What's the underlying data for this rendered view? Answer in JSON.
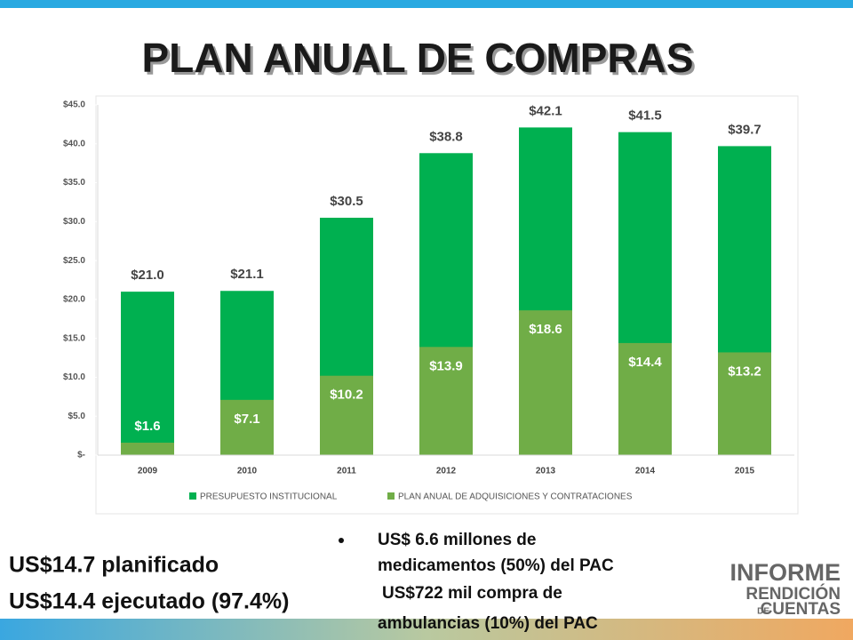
{
  "chart_data": {
    "type": "bar",
    "title": "PLAN ANUAL DE COMPRAS",
    "barmode": "overlay",
    "categories": [
      "2009",
      "2010",
      "2011",
      "2012",
      "2013",
      "2014",
      "2015"
    ],
    "series": [
      {
        "name": "PRESUPUESTO INSTITUCIONAL",
        "color": "#00b050",
        "values": [
          21.0,
          21.1,
          30.5,
          38.8,
          42.1,
          41.5,
          39.7
        ],
        "value_labels": [
          "$21.0",
          "$21.1",
          "$30.5",
          "$38.8",
          "$42.1",
          "$41.5",
          "$39.7"
        ]
      },
      {
        "name": "PLAN ANUAL DE ADQUISICIONES Y CONTRATACIONES",
        "color": "#70ad47",
        "values": [
          1.6,
          7.1,
          10.2,
          13.9,
          18.6,
          14.4,
          13.2
        ],
        "value_labels": [
          "$1.6",
          "$7.1",
          "$10.2",
          "$13.9",
          "$18.6",
          "$14.4",
          "$13.2"
        ]
      }
    ],
    "ylim": [
      0,
      45
    ],
    "yticks": [
      {
        "value": 0,
        "label": "$-"
      },
      {
        "value": 5,
        "label": "$5.0"
      },
      {
        "value": 10,
        "label": "$10.0"
      },
      {
        "value": 15,
        "label": "$15.0"
      },
      {
        "value": 20,
        "label": "$20.0"
      },
      {
        "value": 25,
        "label": "$25.0"
      },
      {
        "value": 30,
        "label": "$30.0"
      },
      {
        "value": 35,
        "label": "$35.0"
      },
      {
        "value": 40,
        "label": "$40.0"
      },
      {
        "value": 45,
        "label": "$45.0"
      }
    ],
    "legend": "bottom"
  },
  "summary": [
    "US$14.7 planificado",
    "US$14.4 ejecutado (97.4%)"
  ],
  "bullets": [
    "US$ 6.6 millones de",
    "medicamentos (50%) del PAC",
    "US$722 mil compra de",
    "ambulancias (10%) del PAC"
  ],
  "logo": [
    "INFORME",
    "RENDICIÓN",
    "DE",
    "CUENTAS"
  ]
}
